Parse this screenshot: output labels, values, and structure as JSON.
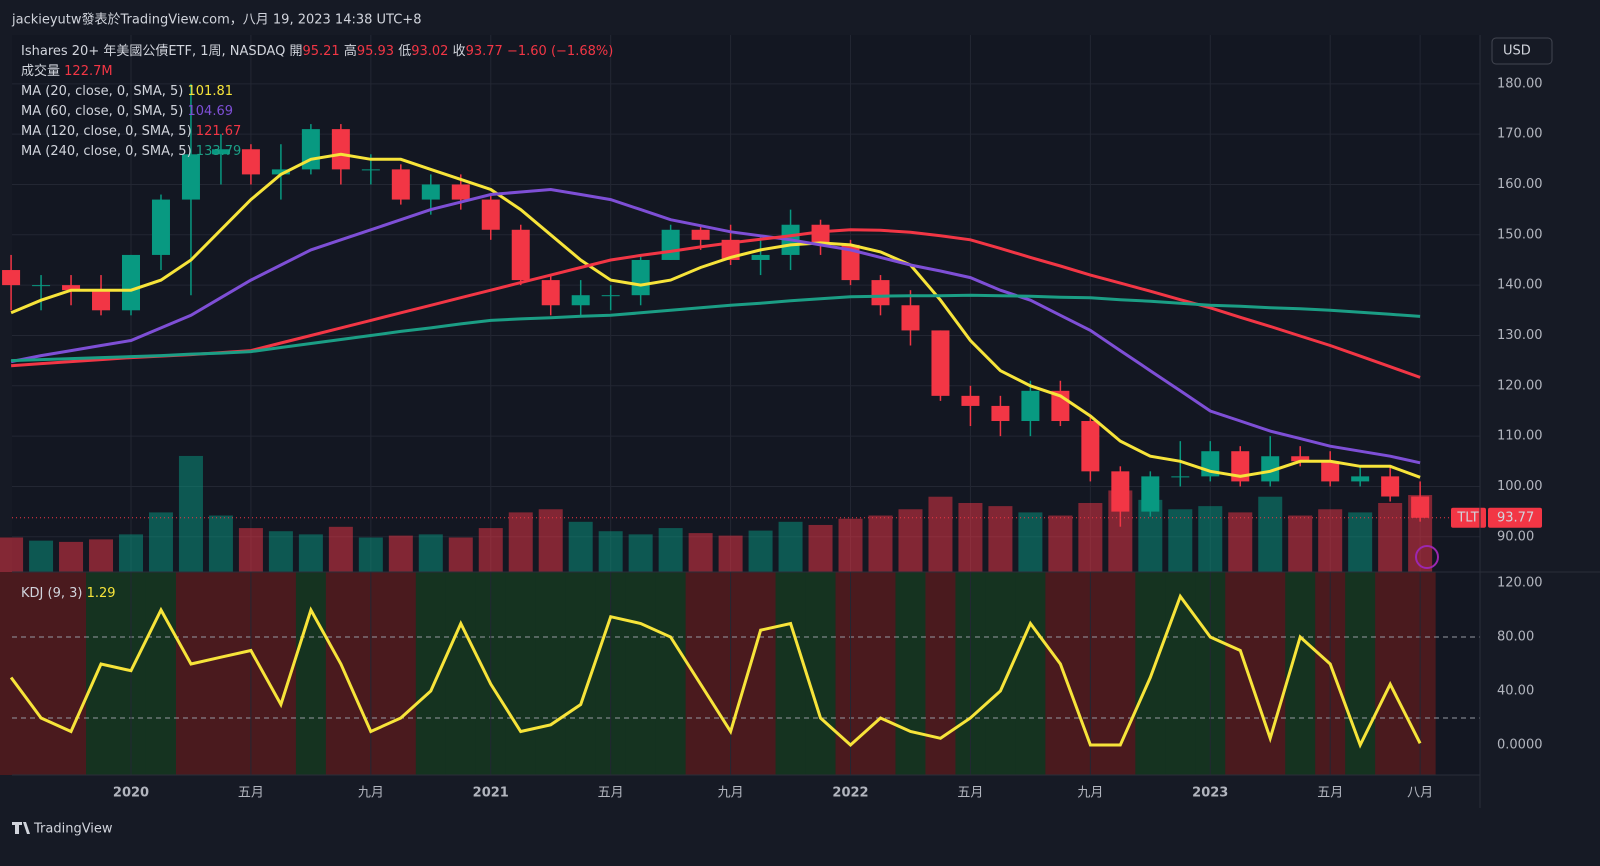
{
  "chart_data": {
    "type": "candlestick",
    "watermark": "jackieyutw發表於TradingView.com，八月 19, 2023 14:38 UTC+8",
    "title": "Ishares 20+ 年美國公債ETF, 1周, NASDAQ",
    "quote": [
      {
        "label": "開",
        "value": 95.21
      },
      {
        "label": "高",
        "value": 95.93
      },
      {
        "label": "低",
        "value": 93.02
      },
      {
        "label": "收",
        "value": 93.77
      }
    ],
    "change": {
      "value": -1.6,
      "label": "−1.60"
    },
    "change_pct": {
      "value": -1.68,
      "label": "(−1.68%)"
    },
    "volume_title": "成交量",
    "volume_last": {
      "value": 122.7,
      "label": "122.7M"
    },
    "currency": "USD",
    "symbol": "TLT",
    "brand": "TradingView",
    "categories": [
      null,
      null,
      null,
      null,
      "2020",
      null,
      null,
      null,
      "五月",
      null,
      null,
      null,
      "九月",
      null,
      null,
      null,
      "2021",
      null,
      null,
      null,
      "五月",
      null,
      null,
      null,
      "九月",
      null,
      null,
      null,
      "2022",
      null,
      null,
      null,
      "五月",
      null,
      null,
      null,
      "九月",
      null,
      null,
      null,
      "2023",
      null,
      null,
      null,
      "五月",
      null,
      null,
      "八月"
    ],
    "open": [
      143,
      140,
      140,
      139,
      135,
      146,
      157,
      166,
      167,
      162,
      163,
      171,
      163,
      163,
      157,
      160,
      157,
      151,
      141,
      136,
      138,
      138,
      145,
      151,
      149,
      145,
      146,
      152,
      148,
      141,
      136,
      131,
      118,
      116,
      113,
      119,
      113,
      103,
      95,
      102,
      102,
      107,
      101,
      106,
      105,
      101,
      102,
      98
    ],
    "high": [
      146,
      142,
      142,
      142,
      146,
      158,
      180,
      170,
      168,
      168,
      172,
      172,
      166,
      164,
      162,
      162,
      158,
      152,
      142,
      141,
      140,
      146,
      152,
      152,
      152,
      150,
      155,
      153,
      149,
      142,
      139,
      131,
      120,
      118,
      121,
      121,
      114,
      104,
      103,
      109,
      109,
      108,
      110,
      108,
      107,
      104,
      104,
      101
    ],
    "low": [
      135,
      135,
      136,
      134,
      134,
      143,
      138,
      160,
      160,
      157,
      162,
      160,
      160,
      156,
      154,
      155,
      149,
      140,
      134,
      134,
      135,
      136,
      145,
      147,
      144,
      142,
      143,
      146,
      140,
      134,
      128,
      117,
      112,
      110,
      110,
      112,
      101,
      92,
      94,
      100,
      101,
      100,
      100,
      104,
      100,
      100,
      97,
      93
    ],
    "close": [
      140,
      140,
      139,
      135,
      146,
      157,
      166,
      167,
      162,
      163,
      171,
      163,
      163,
      157,
      160,
      157,
      151,
      141,
      136,
      138,
      138,
      145,
      151,
      149,
      145,
      146,
      152,
      148,
      141,
      136,
      131,
      118,
      116,
      113,
      119,
      113,
      103,
      95,
      102,
      102,
      107,
      101,
      106,
      105,
      101,
      102,
      98,
      93.77
    ],
    "volume": [
      55,
      50,
      48,
      52,
      60,
      95,
      185,
      90,
      70,
      65,
      60,
      72,
      55,
      58,
      60,
      55,
      70,
      95,
      100,
      80,
      65,
      60,
      70,
      62,
      58,
      66,
      80,
      75,
      85,
      90,
      100,
      120,
      110,
      105,
      95,
      90,
      110,
      130,
      115,
      100,
      105,
      95,
      120,
      90,
      100,
      95,
      110,
      122.7
    ],
    "volume_ylim": [
      0,
      856
    ],
    "ma": [
      {
        "name": "MA (20, close, 0, SMA, 5)",
        "color": "#f7e43a",
        "values": [
          134.5,
          137,
          139,
          139,
          139,
          141,
          145,
          151,
          157,
          162,
          165,
          166,
          165,
          165,
          163,
          161,
          159,
          155,
          150,
          145,
          141,
          140,
          141,
          143.5,
          145.5,
          147,
          148,
          148.4,
          148,
          146.6,
          144,
          137,
          129,
          123,
          120,
          118,
          114,
          109,
          106,
          105,
          103,
          102,
          103,
          105,
          105,
          104,
          104,
          101.81
        ]
      },
      {
        "name": "MA (60, close, 0, SMA, 5)",
        "color": "#7e4fd6",
        "values": [
          124.8,
          126,
          127,
          128,
          129,
          131.5,
          134,
          137.5,
          141,
          144,
          147,
          149,
          151,
          153,
          155,
          156.5,
          158,
          158.5,
          159,
          158,
          157,
          155,
          153,
          151.8,
          150.6,
          149.8,
          149,
          148,
          147,
          145.5,
          144,
          142.8,
          141.5,
          139,
          137,
          134,
          131,
          127,
          123,
          119,
          115,
          113,
          111,
          109.5,
          108,
          107,
          106,
          104.69
        ]
      },
      {
        "name": "MA (120, close, 0, SMA, 5)",
        "color": "#f23645",
        "values": [
          124,
          124.4,
          124.8,
          125.2,
          125.6,
          125.9,
          126.2,
          126.6,
          127,
          128.5,
          130,
          131.5,
          133,
          134.5,
          136,
          137.5,
          139,
          140.5,
          142,
          143.5,
          145,
          145.9,
          146.7,
          147.6,
          148.4,
          149.1,
          149.8,
          150.6,
          151,
          150.9,
          150.5,
          149.8,
          149,
          147.3,
          145.5,
          143.8,
          142,
          140.4,
          138.8,
          137.1,
          135.5,
          133.6,
          131.8,
          129.9,
          128,
          125.9,
          123.8,
          121.67
        ]
      },
      {
        "name": "MA (240, close, 0, SMA, 5)",
        "color": "#1b9e85",
        "values": [
          125,
          125.2,
          125.4,
          125.6,
          125.8,
          126,
          126.3,
          126.5,
          126.8,
          127.6,
          128.4,
          129.2,
          130,
          130.8,
          131.5,
          132.3,
          133,
          133.3,
          133.5,
          133.8,
          134,
          134.5,
          135,
          135.5,
          136,
          136.4,
          136.9,
          137.3,
          137.7,
          137.8,
          137.9,
          137.9,
          138,
          137.9,
          137.8,
          137.6,
          137.5,
          137.1,
          136.8,
          136.4,
          136,
          135.8,
          135.5,
          135.3,
          135,
          134.6,
          134.2,
          133.79
        ]
      }
    ],
    "up_color": "#089981",
    "down_color": "#f23645",
    "ylim": [
      83.0,
      189.7
    ],
    "yticks": [
      {
        "value": 90,
        "label": "90.00"
      },
      {
        "value": 100,
        "label": "100.00"
      },
      {
        "value": 110,
        "label": "110.00"
      },
      {
        "value": 120,
        "label": "120.00"
      },
      {
        "value": 130,
        "label": "130.00"
      },
      {
        "value": 140,
        "label": "140.00"
      },
      {
        "value": 150,
        "label": "150.00"
      },
      {
        "value": 160,
        "label": "160.00"
      },
      {
        "value": 170,
        "label": "170.00"
      },
      {
        "value": 180,
        "label": "180.00"
      }
    ],
    "kdj": {
      "name": "KDJ (9, 3)",
      "color": "#f7e43a",
      "values": [
        50,
        20,
        10,
        60,
        55,
        100,
        60,
        65,
        70,
        30,
        100,
        60,
        10,
        20,
        40,
        90,
        45,
        10,
        15,
        30,
        95,
        90,
        80,
        45,
        10,
        85,
        90,
        20,
        0,
        20,
        10,
        5,
        20,
        40,
        90,
        60,
        0,
        0,
        50,
        110,
        80,
        70,
        5,
        80,
        60,
        0,
        45,
        1.29
      ],
      "background": [
        "#4a1a1e",
        "#4a1a1e",
        "#4a1a1e",
        "#153320",
        "#153320",
        "#153320",
        "#4a1a1e",
        "#4a1a1e",
        "#4a1a1e",
        "#4a1a1e",
        "#153320",
        "#4a1a1e",
        "#4a1a1e",
        "#4a1a1e",
        "#153320",
        "#153320",
        "#153320",
        "#153320",
        "#153320",
        "#153320",
        "#153320",
        "#153320",
        "#153320",
        "#4a1a1e",
        "#4a1a1e",
        "#4a1a1e",
        "#153320",
        "#153320",
        "#4a1a1e",
        "#4a1a1e",
        "#153320",
        "#4a1a1e",
        "#153320",
        "#153320",
        "#153320",
        "#4a1a1e",
        "#4a1a1e",
        "#4a1a1e",
        "#153320",
        "#153320",
        "#153320",
        "#4a1a1e",
        "#4a1a1e",
        "#153320",
        "#4a1a1e",
        "#153320",
        "#4a1a1e",
        "#4a1a1e"
      ],
      "ylim": [
        -22.2,
        128.1
      ],
      "yticks": [
        {
          "value": 0,
          "label": "0.0000"
        },
        {
          "value": 40,
          "label": "40.00"
        },
        {
          "value": 80,
          "label": "80.00"
        },
        {
          "value": 120,
          "label": "120.00"
        }
      ],
      "bands": [
        20,
        80
      ]
    },
    "grid": true
  }
}
